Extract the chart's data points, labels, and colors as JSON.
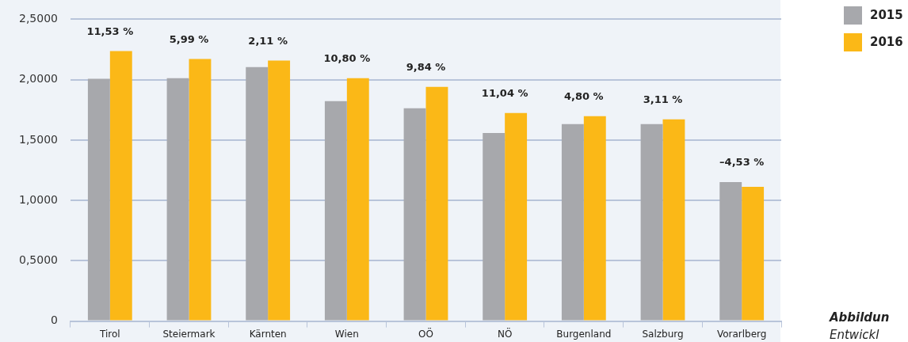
{
  "chart_data": {
    "type": "bar",
    "categories": [
      "Tirol",
      "Steiermark",
      "Kärnten",
      "Wien",
      "OÖ",
      "NÖ",
      "Burgenland",
      "Salzburg",
      "Vorarlberg"
    ],
    "series": [
      {
        "name": "2015",
        "color": "#a7a8ac",
        "values": [
          2.007,
          2.013,
          2.105,
          1.822,
          1.763,
          1.559,
          1.632,
          1.632,
          1.151
        ]
      },
      {
        "name": "2016",
        "color": "#fbb817",
        "values": [
          2.237,
          2.171,
          2.158,
          2.013,
          1.941,
          1.724,
          1.697,
          1.671,
          1.112
        ]
      }
    ],
    "ylim": [
      0,
      2.5
    ],
    "yticks": [
      0,
      {
        "value": 0.5,
        "label": "0,5000"
      },
      {
        "value": 1,
        "label": "1,0000"
      },
      {
        "value": 1.5,
        "label": "1,5000"
      },
      {
        "value": 2,
        "label": "2,0000"
      },
      {
        "value": 2.5,
        "label": "2,5000"
      }
    ],
    "grid": "y",
    "legend": "top right",
    "annotations": [
      "11,53 %",
      "5,99 %",
      "2,11 %",
      "10,80 %",
      "9,84 %",
      "11,04 %",
      "4,80 %",
      "3,11 %",
      "–4,53 %",
      "Abbildun",
      "Entwickl"
    ]
  }
}
